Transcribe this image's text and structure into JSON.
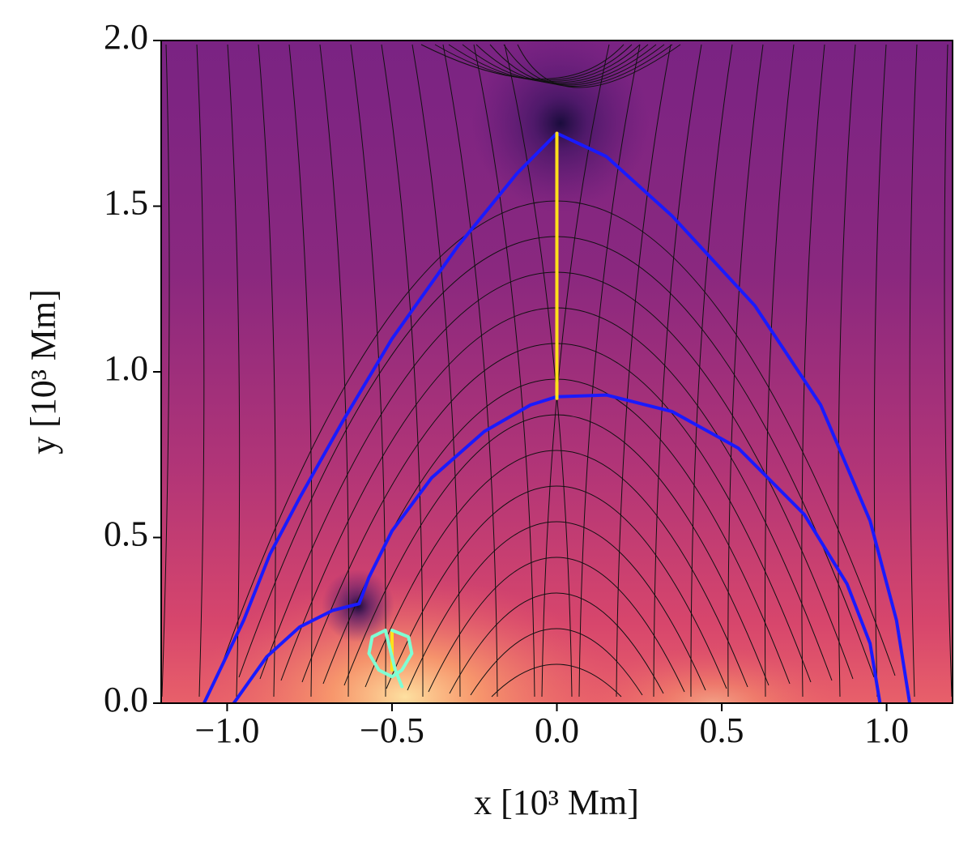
{
  "chart_data": {
    "type": "line",
    "xlabel": "x [10³ Mm]",
    "ylabel": "y [10³ Mm]",
    "xlim": [
      -1.2,
      1.2
    ],
    "ylim": [
      0,
      2
    ],
    "xticks": [
      {
        "value": -1,
        "label": "−1.0"
      },
      {
        "value": -0.5,
        "label": "−0.5"
      },
      {
        "value": 0,
        "label": "0.0"
      },
      {
        "value": 0.5,
        "label": "0.5"
      },
      {
        "value": 1,
        "label": "1.0"
      }
    ],
    "yticks": [
      {
        "value": 0,
        "label": "0.0"
      },
      {
        "value": 0.5,
        "label": "0.5"
      },
      {
        "value": 1,
        "label": "1.0"
      },
      {
        "value": 1.5,
        "label": "1.5"
      },
      {
        "value": 2,
        "label": "2.0"
      }
    ],
    "series": [
      {
        "color": "#1a1aff",
        "x": [
          -1.07,
          -0.95,
          -0.87,
          -0.78,
          -0.65,
          -0.5,
          -0.3,
          -0.12,
          0,
          0.15,
          0.35,
          0.6,
          0.8,
          0.95,
          1.03,
          1.07
        ],
        "values": [
          0,
          0.25,
          0.45,
          0.62,
          0.85,
          1.1,
          1.38,
          1.6,
          1.72,
          1.65,
          1.47,
          1.2,
          0.9,
          0.55,
          0.25,
          0
        ]
      },
      {
        "color": "#1a1aff",
        "x": [
          -0.98,
          -0.88,
          -0.78,
          -0.68,
          -0.6,
          -0.57,
          -0.5,
          -0.38,
          -0.22,
          -0.08,
          0,
          0.15,
          0.35,
          0.55,
          0.75,
          0.88,
          0.95,
          0.98
        ],
        "values": [
          0,
          0.14,
          0.23,
          0.28,
          0.3,
          0.38,
          0.52,
          0.68,
          0.82,
          0.9,
          0.925,
          0.93,
          0.88,
          0.77,
          0.57,
          0.36,
          0.18,
          0
        ]
      },
      {
        "color": "#ffe01a",
        "x": [
          0,
          0
        ],
        "values": [
          0.92,
          1.72
        ]
      },
      {
        "color": "#ffe01a",
        "x": [
          -0.5,
          -0.5
        ],
        "values": [
          0.1,
          0.22
        ]
      },
      {
        "color": "#7fffd4",
        "x": [
          -0.5,
          -0.45,
          -0.44,
          -0.47,
          -0.5,
          -0.54,
          -0.57,
          -0.56,
          -0.52,
          -0.49,
          -0.47
        ],
        "values": [
          0.22,
          0.2,
          0.15,
          0.1,
          0.08,
          0.1,
          0.15,
          0.2,
          0.22,
          0.1,
          0.05
        ]
      }
    ]
  }
}
